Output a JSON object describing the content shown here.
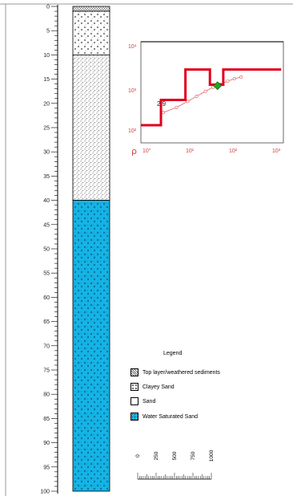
{
  "depth_axis": {
    "ticks": [
      "0",
      "5",
      "10",
      "15",
      "20",
      "25",
      "30",
      "35",
      "40",
      "45",
      "50",
      "55",
      "60",
      "65",
      "70",
      "75",
      "80",
      "85",
      "90",
      "95",
      "100"
    ],
    "range": [
      0,
      100
    ],
    "minor_step": 1
  },
  "lithology": {
    "layers": [
      {
        "name": "Top layer/weathered sediments",
        "top": 0,
        "bottom": 1,
        "pattern": "top-layer"
      },
      {
        "name": "Clayey Sand",
        "top": 1,
        "bottom": 10,
        "pattern": "clayey-sand"
      },
      {
        "name": "Sand",
        "top": 10,
        "bottom": 40,
        "pattern": "sand"
      },
      {
        "name": "Water Saturated Sand",
        "top": 40,
        "bottom": 100,
        "pattern": "water-sand"
      }
    ],
    "colors": {
      "water": "#14b4e6",
      "outline": "#000000"
    }
  },
  "sounding": {
    "y_ticks": [
      "10²",
      "10³",
      "10⁴"
    ],
    "x_ticks": [
      "10°",
      "10¹",
      "10²",
      "10³"
    ],
    "rho_label": "ρ",
    "annotation": "2.9",
    "colors": {
      "model": "#e0001b",
      "data": "#e07070",
      "marker": "#28a028",
      "axis_label": "#d04040"
    },
    "model_steps": [
      {
        "x_start": 0.0,
        "x_end": 0.45,
        "log_rho": 2.35
      },
      {
        "x_start": 0.45,
        "x_end": 1.0,
        "log_rho": 2.85
      },
      {
        "x_start": 1.0,
        "x_end": 1.55,
        "log_rho": 3.45
      },
      {
        "x_start": 1.55,
        "x_end": 1.85,
        "log_rho": 3.15
      },
      {
        "x_start": 1.85,
        "x_end": 3.15,
        "log_rho": 3.45
      }
    ],
    "data_points": [
      {
        "x": 0.5,
        "log_rho": 2.6
      },
      {
        "x": 0.8,
        "log_rho": 2.7
      },
      {
        "x": 1.05,
        "log_rho": 2.82
      },
      {
        "x": 1.25,
        "log_rho": 2.92
      },
      {
        "x": 1.45,
        "log_rho": 3.02
      },
      {
        "x": 1.62,
        "log_rho": 3.1
      },
      {
        "x": 1.78,
        "log_rho": 3.16
      },
      {
        "x": 1.95,
        "log_rho": 3.22
      },
      {
        "x": 2.1,
        "log_rho": 3.27
      },
      {
        "x": 2.25,
        "log_rho": 3.3
      }
    ],
    "marker_point": {
      "x": 1.72,
      "log_rho": 3.13
    }
  },
  "legend": {
    "title": "Legend",
    "items": [
      {
        "label": "Top layer/weathered sediments",
        "pattern": "top-layer"
      },
      {
        "label": "Clayey Sand",
        "pattern": "clayey-sand"
      },
      {
        "label": "Sand",
        "pattern": "sand-x"
      },
      {
        "label": "Water Saturated Sand",
        "pattern": "water-sand"
      }
    ]
  },
  "scale_bar": {
    "labels": [
      "0",
      "250",
      "500",
      "750",
      "1000"
    ]
  }
}
